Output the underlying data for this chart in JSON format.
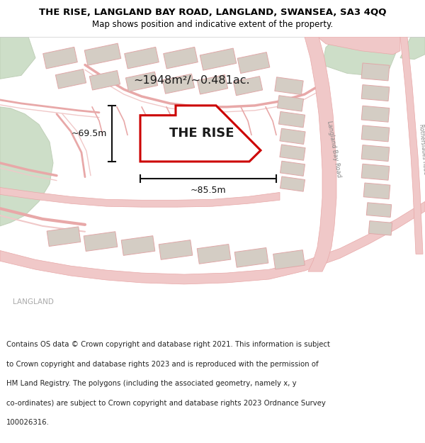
{
  "title_line1": "THE RISE, LANGLAND BAY ROAD, LANGLAND, SWANSEA, SA3 4QQ",
  "title_line2": "Map shows position and indicative extent of the property.",
  "area_label": "~1948m²/~0.481ac.",
  "property_label": "THE RISE",
  "dim_height": "~69.5m",
  "dim_width": "~85.5m",
  "langland_label": "LANGLAND",
  "road_label_lbr": "Langland Bay Road",
  "road_label_rsr": "Rotherslades Road",
  "road_label_lbr2": "Langland Bay Road",
  "footer_text": "Contains OS data © Crown copyright and database right 2021. This information is subject to Crown copyright and database rights 2023 and is reproduced with the permission of HM Land Registry. The polygons (including the associated geometry, namely x, y co-ordinates) are subject to Crown copyright and database rights 2023 Ordnance Survey 100026316.",
  "bg_color": "#f7f4ef",
  "map_bg": "#f7f4ef",
  "road_color": "#e8a8a8",
  "road_fill": "#f0c8c8",
  "green_color": "#cddec8",
  "green_edge": "#c0d0b8",
  "building_color": "#d4cdc4",
  "building_edge": "#e0a8a8",
  "property_fill": "#ffffff",
  "property_edge": "#cc0000",
  "dim_line_color": "#111111",
  "footer_color": "#222222",
  "text_gray": "#aaaaaa",
  "label_gray": "#888888"
}
